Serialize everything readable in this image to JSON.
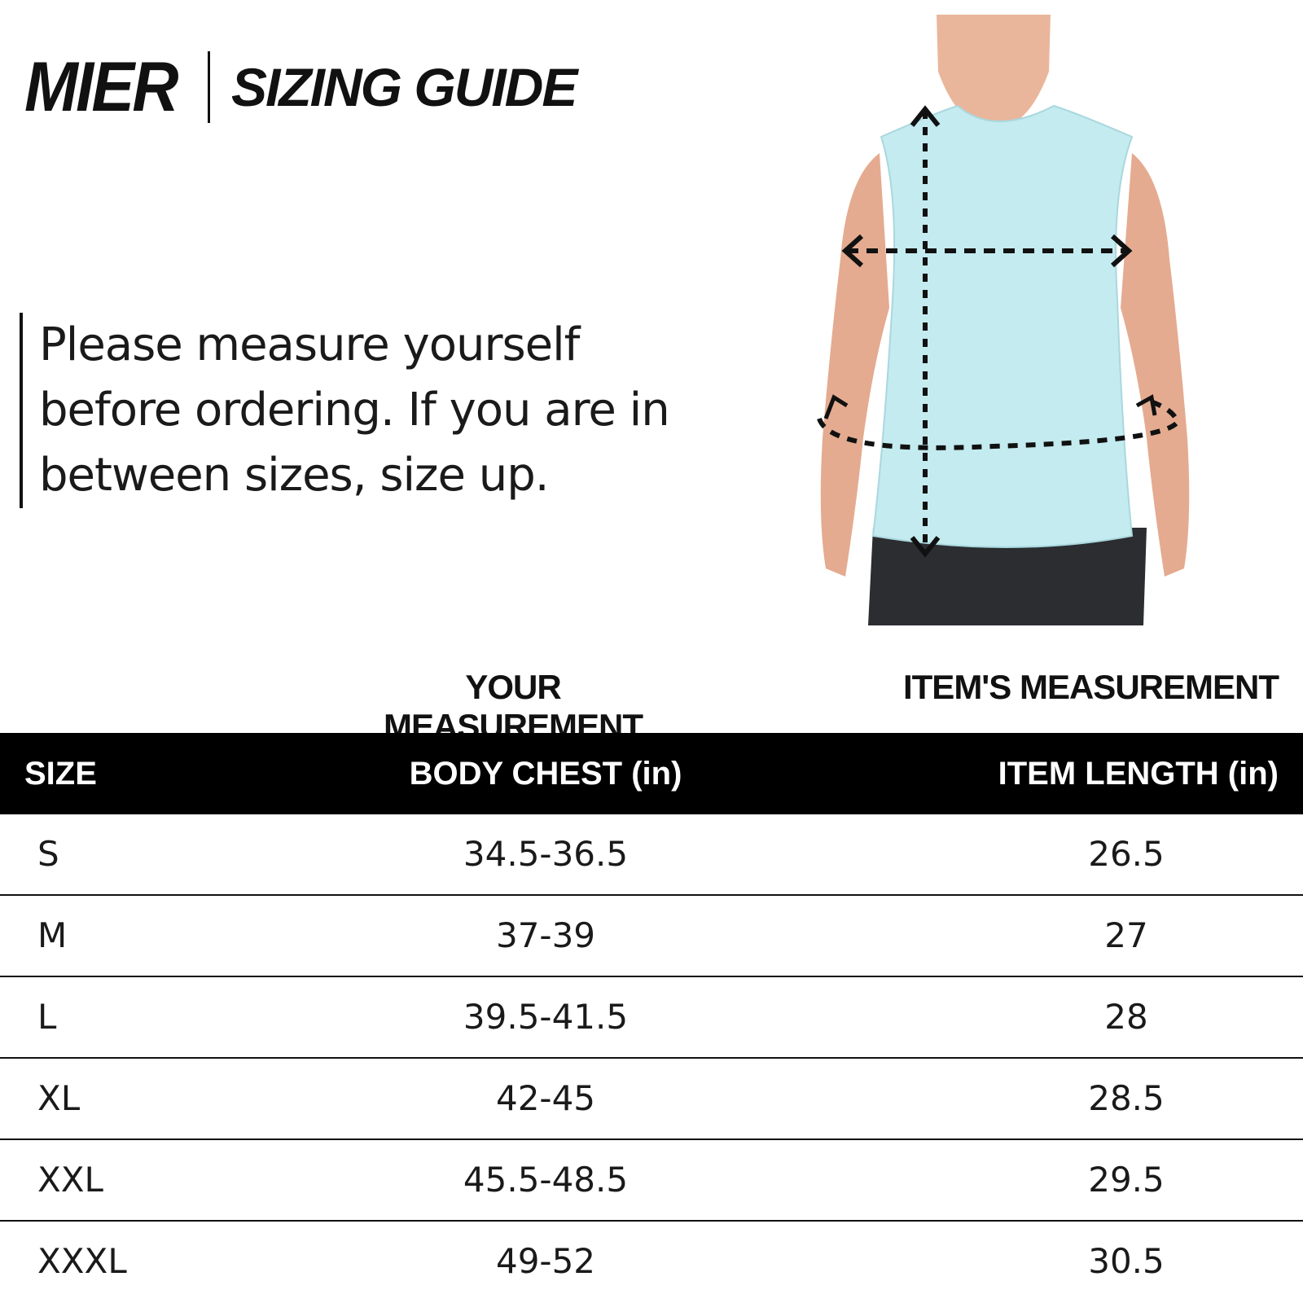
{
  "header": {
    "brand": "MIER",
    "title": "SIZING GUIDE"
  },
  "note": "Please measure yourself before ordering. If you are in between sizes, size up.",
  "illustration": {
    "subject": "model wearing light blue sleeveless tank top with dashed measurement arrows for chest and length",
    "shirt_color": "#c4ebef"
  },
  "groups": {
    "your": "YOUR MEASUREMENT",
    "item": "ITEM'S MEASUREMENT"
  },
  "table": {
    "headers": [
      "SIZE",
      "BODY CHEST (in)",
      "ITEM LENGTH (in)"
    ],
    "rows": [
      [
        "S",
        "34.5-36.5",
        "26.5"
      ],
      [
        "M",
        "37-39",
        "27"
      ],
      [
        "L",
        "39.5-41.5",
        "28"
      ],
      [
        "XL",
        "42-45",
        "28.5"
      ],
      [
        "XXL",
        "45.5-48.5",
        "29.5"
      ],
      [
        "XXXL",
        "49-52",
        "30.5"
      ]
    ]
  }
}
